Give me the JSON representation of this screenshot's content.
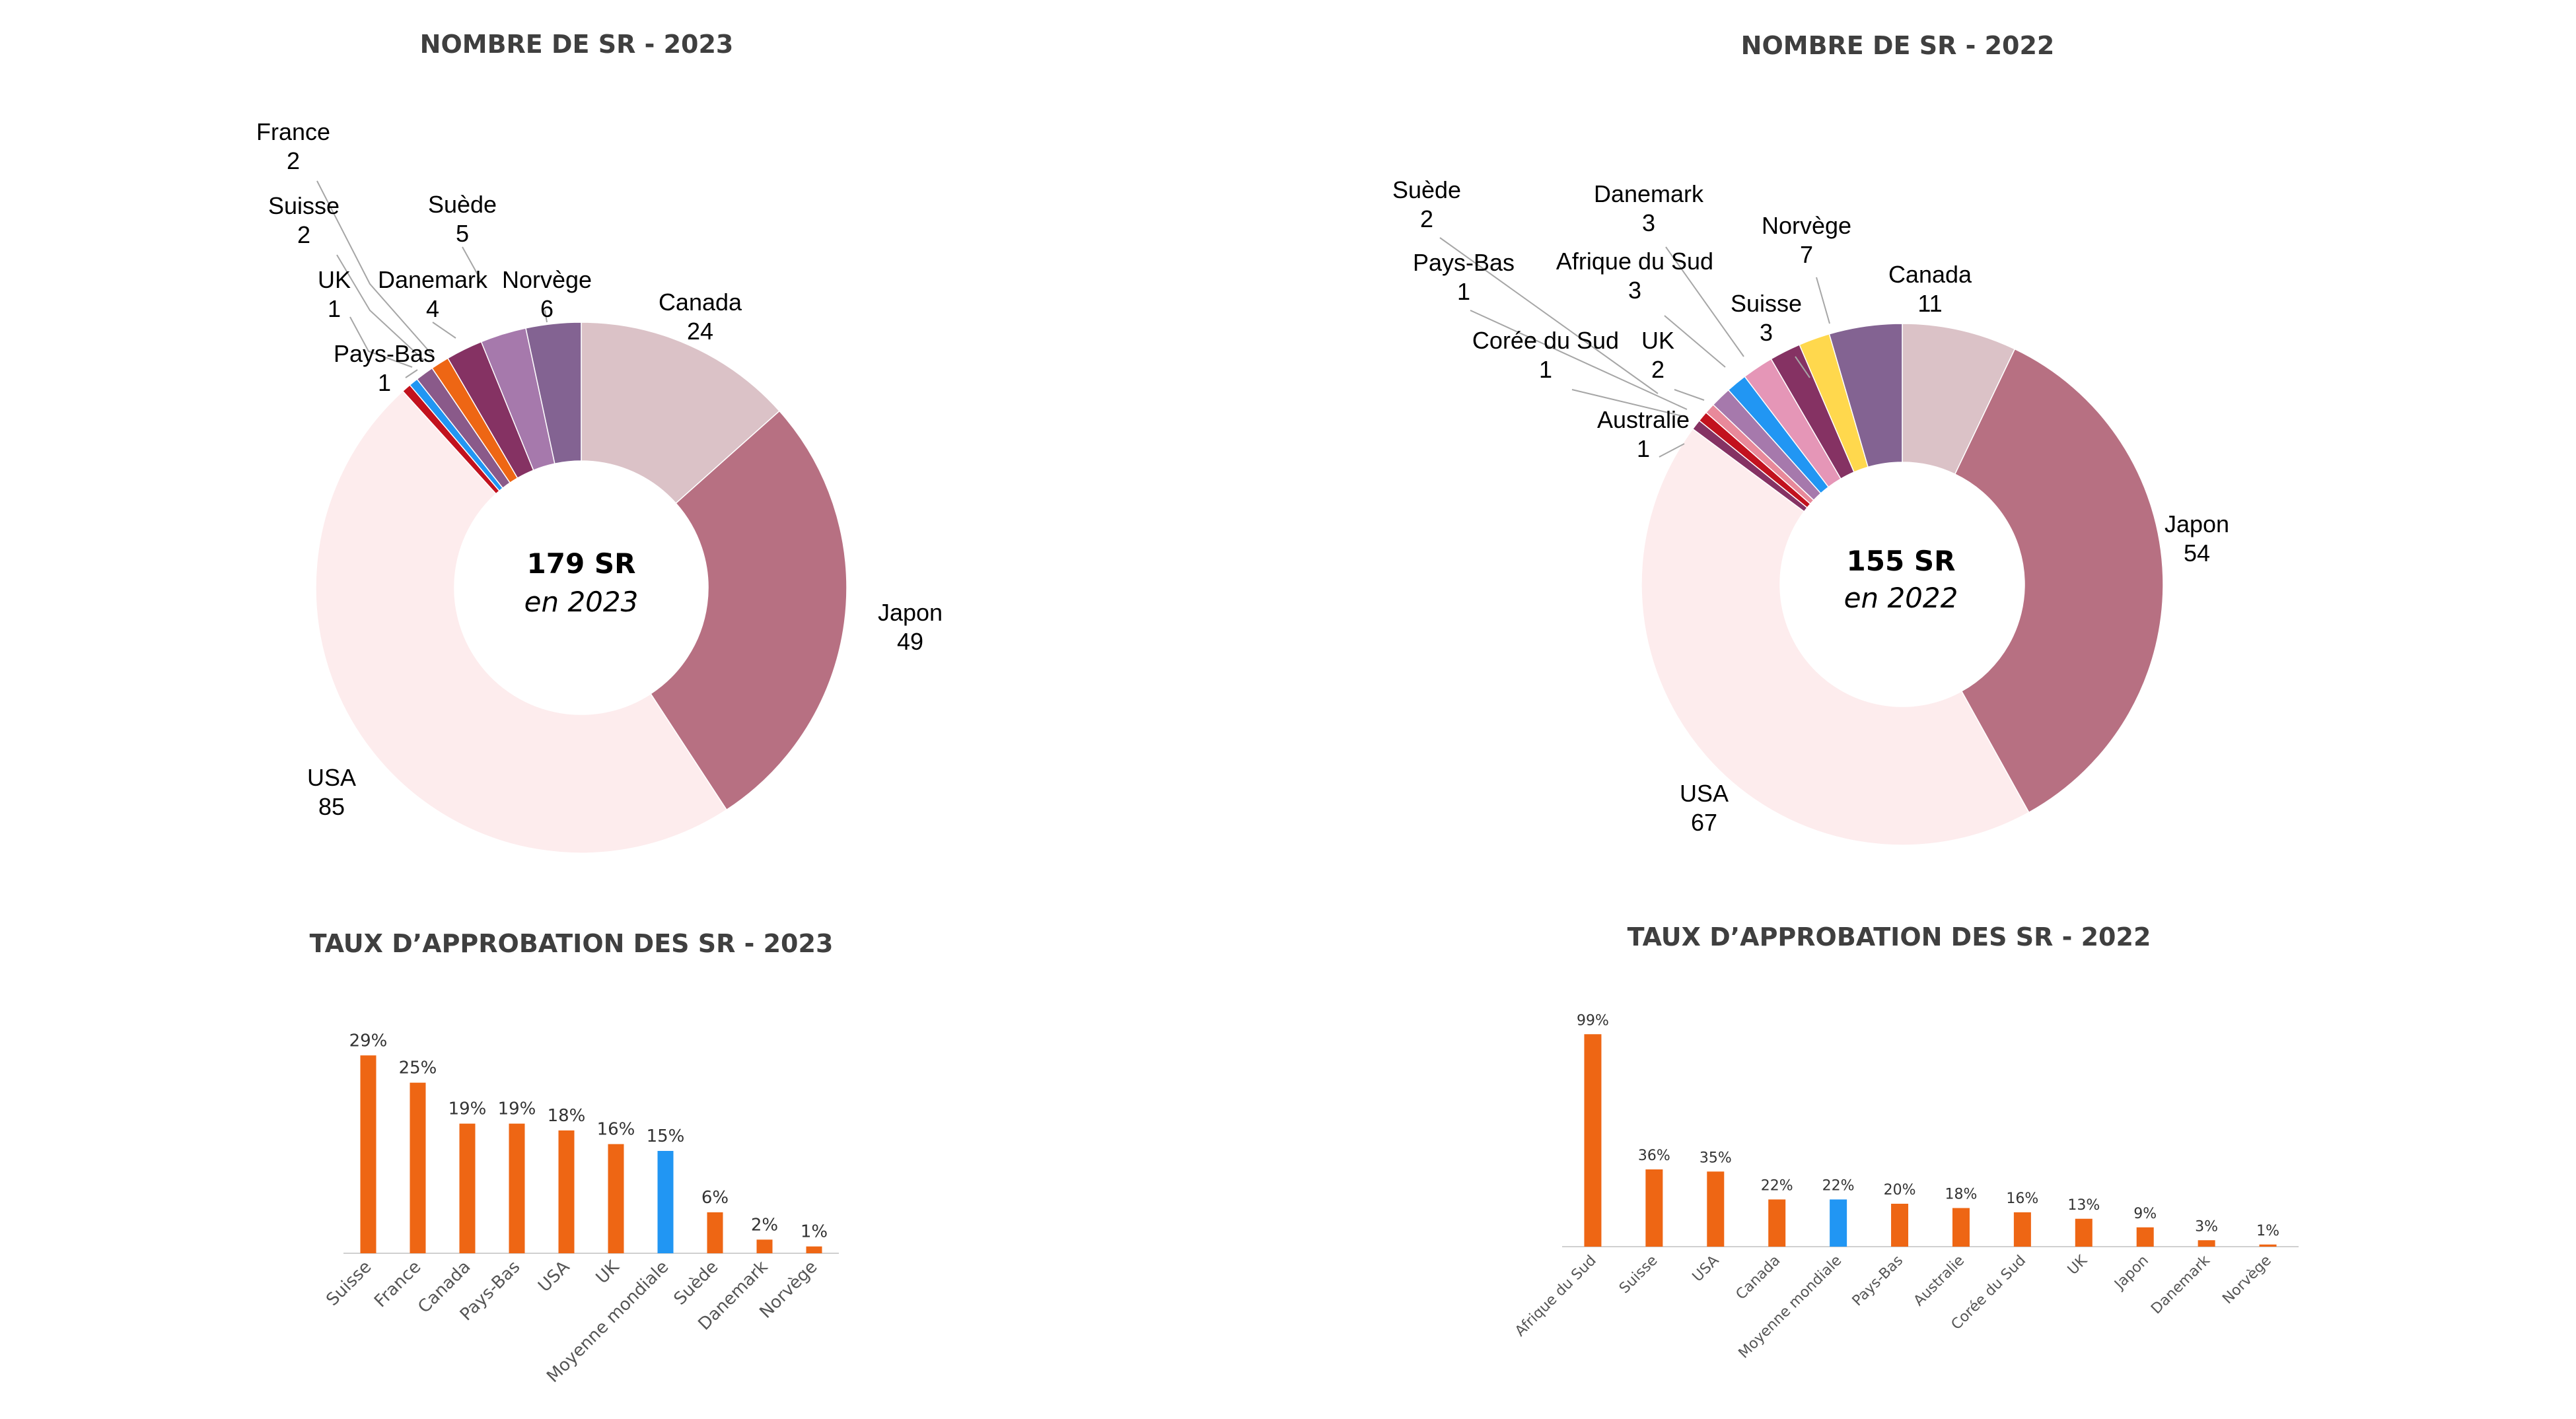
{
  "chart_data": [
    {
      "type": "pie",
      "variant": "donut",
      "title": "NOMBRE DE SR - 2023",
      "center_main": "179 SR",
      "center_sub": "en 2023",
      "start_angle_deg": 0,
      "slices": [
        {
          "label": "Canada",
          "value": 24,
          "color": "#dbc2c7"
        },
        {
          "label": "Japon",
          "value": 49,
          "color": "#b77082"
        },
        {
          "label": "USA",
          "value": 85,
          "color": "#fdeced"
        },
        {
          "label": "UK",
          "value": 1,
          "color": "#c2121e"
        },
        {
          "label": "Pays-Bas",
          "value": 1,
          "color": "#2196f3"
        },
        {
          "label": "Suisse",
          "value": 2,
          "color": "#8a5a8a"
        },
        {
          "label": "France",
          "value": 2,
          "color": "#ee6614"
        },
        {
          "label": "Danemark",
          "value": 4,
          "color": "#853263"
        },
        {
          "label": "Suède",
          "value": 5,
          "color": "#a679ac"
        },
        {
          "label": "Norvège",
          "value": 6,
          "color": "#836392"
        }
      ]
    },
    {
      "type": "pie",
      "variant": "donut",
      "title": "NOMBRE DE SR - 2022",
      "center_main": "155 SR",
      "center_sub": "en 2022",
      "start_angle_deg": 0,
      "slices": [
        {
          "label": "Canada",
          "value": 11,
          "color": "#dbc2c7"
        },
        {
          "label": "Japon",
          "value": 54,
          "color": "#b77082"
        },
        {
          "label": "USA",
          "value": 67,
          "color": "#fdeced"
        },
        {
          "label": "Australie",
          "value": 1,
          "color": "#853263"
        },
        {
          "label": "Corée du Sud",
          "value": 1,
          "color": "#c2121e"
        },
        {
          "label": "Pays-Bas",
          "value": 1,
          "color": "#e8899a"
        },
        {
          "label": "Suède",
          "value": 2,
          "color": "#a679ac"
        },
        {
          "label": "UK",
          "value": 2,
          "color": "#2196f3"
        },
        {
          "label": "Afrique du Sud",
          "value": 3,
          "color": "#e596b7"
        },
        {
          "label": "Danemark",
          "value": 3,
          "color": "#853263"
        },
        {
          "label": "Suisse",
          "value": 3,
          "color": "#ffd84d"
        },
        {
          "label": "Norvège",
          "value": 7,
          "color": "#836392"
        }
      ]
    },
    {
      "type": "bar",
      "title": "TAUX D’APPROBATION DES SR - 2023",
      "categories": [
        "Suisse",
        "France",
        "Canada",
        "Pays-Bas",
        "USA",
        "UK",
        "Moyenne mondiale",
        "Suède",
        "Danemark",
        "Norvège"
      ],
      "values": [
        29,
        25,
        19,
        19,
        18,
        16,
        15,
        6,
        2,
        1
      ],
      "value_labels": [
        "29%",
        "25%",
        "19%",
        "19%",
        "18%",
        "16%",
        "15%",
        "6%",
        "2%",
        "1%"
      ],
      "unit": "%",
      "highlight": "Moyenne mondiale",
      "ylim": [
        0,
        30
      ],
      "grid": false,
      "bar_color": "#ee6614",
      "highlight_color": "#2196f3"
    },
    {
      "type": "bar",
      "title": "TAUX D’APPROBATION DES SR - 2022",
      "categories": [
        "Afrique du Sud",
        "Suisse",
        "USA",
        "Canada",
        "Moyenne mondiale",
        "Pays-Bas",
        "Australie",
        "Corée du Sud",
        "UK",
        "Japon",
        "Danemark",
        "Norvège"
      ],
      "values": [
        99,
        36,
        35,
        22,
        22,
        20,
        18,
        16,
        13,
        9,
        3,
        1
      ],
      "value_labels": [
        "99%",
        "36%",
        "35%",
        "22%",
        "22%",
        "20%",
        "18%",
        "16%",
        "13%",
        "9%",
        "3%",
        "1%"
      ],
      "unit": "%",
      "highlight": "Moyenne mondiale",
      "ylim": [
        0,
        100
      ],
      "grid": false,
      "bar_color": "#ee6614",
      "highlight_color": "#2196f3"
    }
  ]
}
